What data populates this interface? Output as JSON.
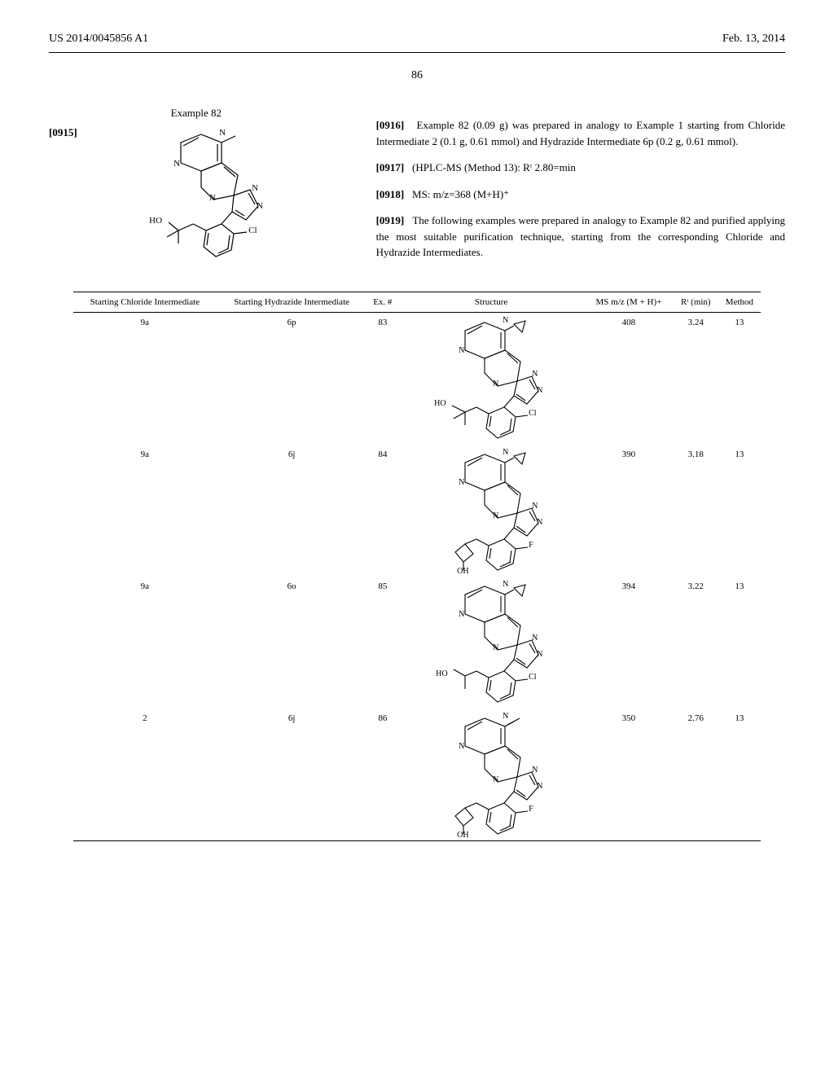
{
  "header": {
    "left": "US 2014/0045856 A1",
    "right": "Feb. 13, 2014"
  },
  "page_number": "86",
  "example": {
    "title": "Example 82",
    "para_num": "[0915]",
    "structure_labels": {
      "N_top": "N",
      "N_left": "N",
      "N_mid": "N",
      "N_r1": "N",
      "N_r2": "N",
      "HO": "HO",
      "Cl": "Cl"
    }
  },
  "paragraphs": [
    {
      "num": "[0916]",
      "text": "Example 82 (0.09 g) was prepared in analogy to Example 1 starting from Chloride Intermediate 2 (0.1 g, 0.61 mmol) and Hydrazide Intermediate 6p (0.2 g, 0.61 mmol)."
    },
    {
      "num": "[0917]",
      "text": "(HPLC-MS (Method 13): Rᵗ 2.80=min"
    },
    {
      "num": "[0918]",
      "text": "MS: m/z=368 (M+H)⁺"
    },
    {
      "num": "[0919]",
      "text": "The following examples were prepared in analogy to Example 82 and purified applying the most suitable purification technique, starting from the corresponding Chloride and Hydrazide Intermediates."
    }
  ],
  "table": {
    "columns": [
      "Starting Chloride Intermediate",
      "Starting Hydrazide Intermediate",
      "Ex. #",
      "Structure",
      "MS m/z (M + H)+",
      "Rᵗ (min)",
      "Method"
    ],
    "rows": [
      {
        "chloride": "9a",
        "hydrazide": "6p",
        "ex": "83",
        "ms": "408",
        "rt": "3.24",
        "method": "13",
        "struct": {
          "variant": "cyclopropyl",
          "left": "HO",
          "right": "Cl",
          "leftgroup": "tbuoh"
        }
      },
      {
        "chloride": "9a",
        "hydrazide": "6j",
        "ex": "84",
        "ms": "390",
        "rt": "3.18",
        "method": "13",
        "struct": {
          "variant": "cyclopropyl",
          "left": "OH",
          "right": "F",
          "leftgroup": "cyclobutanol"
        }
      },
      {
        "chloride": "9a",
        "hydrazide": "6o",
        "ex": "85",
        "ms": "394",
        "rt": "3.22",
        "method": "13",
        "struct": {
          "variant": "cyclopropyl",
          "left": "HO",
          "right": "Cl",
          "leftgroup": "isopropanol"
        }
      },
      {
        "chloride": "2",
        "hydrazide": "6j",
        "ex": "86",
        "ms": "350",
        "rt": "2.76",
        "method": "13",
        "struct": {
          "variant": "methyl",
          "left": "OH",
          "right": "F",
          "leftgroup": "cyclobutanol"
        }
      }
    ]
  },
  "chem_labels": {
    "N": "N",
    "HO": "HO",
    "OH": "OH",
    "Cl": "Cl",
    "F": "F"
  }
}
